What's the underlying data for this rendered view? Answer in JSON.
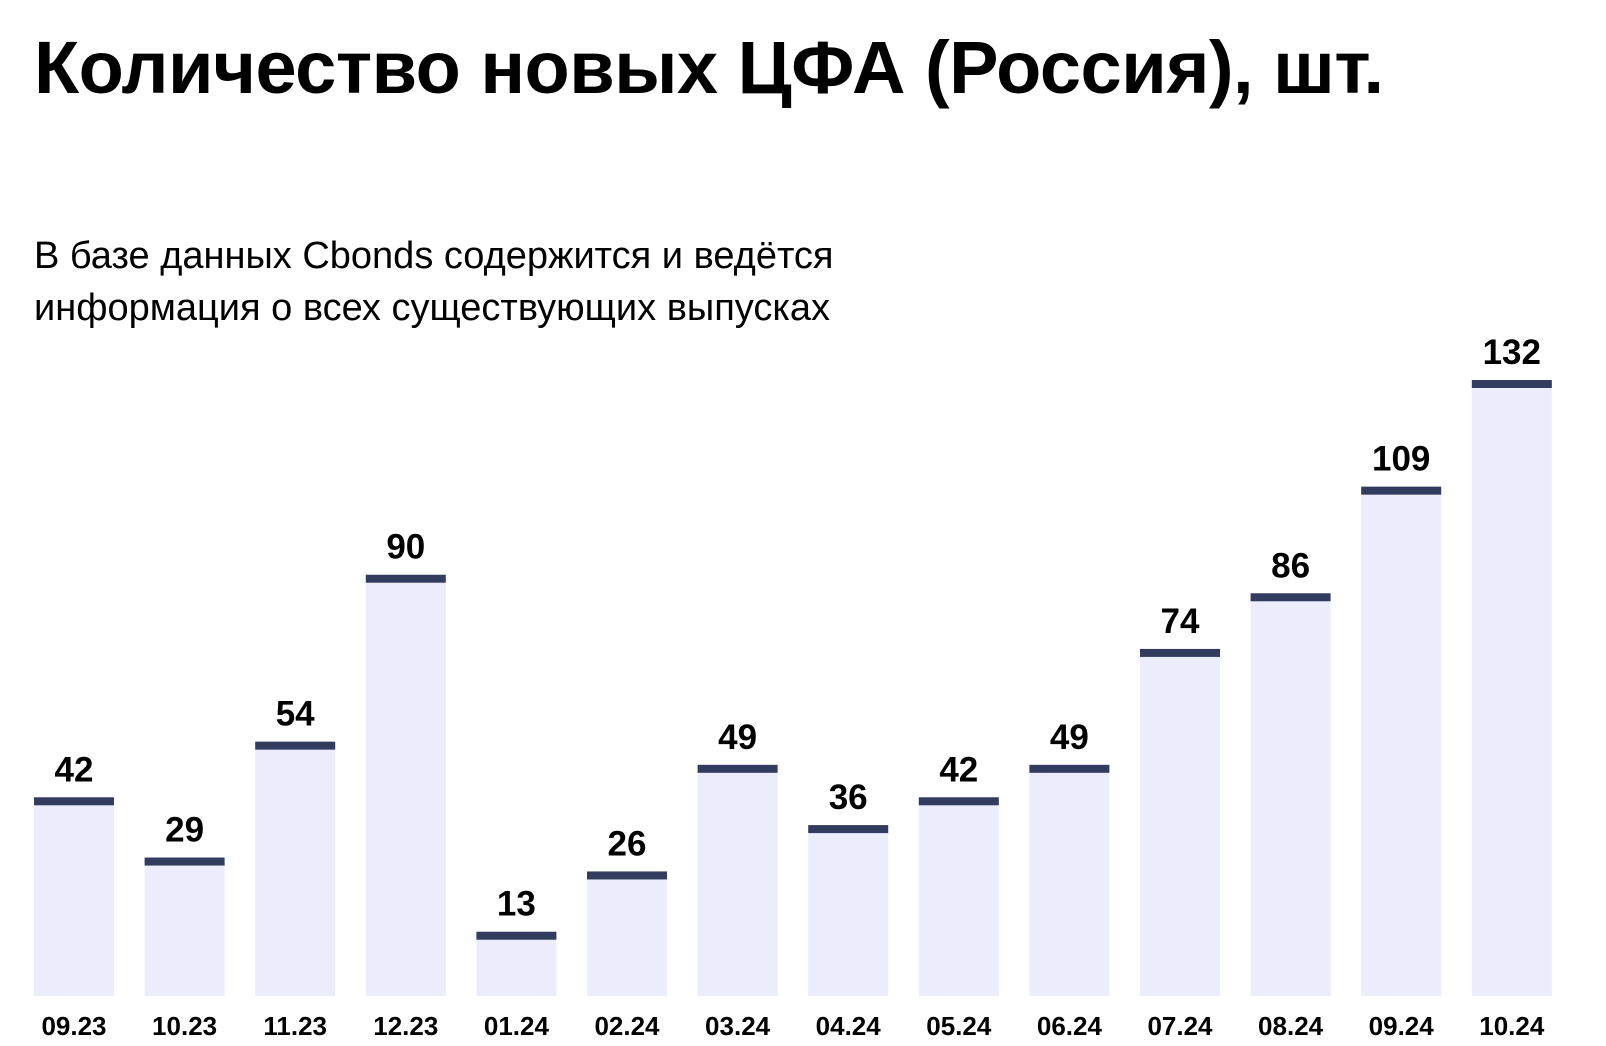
{
  "title": "Количество новых ЦФА (Россия), шт.",
  "subtitle": "В базе данных Cbonds содержится и ведётся информация о всех существующих выпусках",
  "colors": {
    "bar_fill": "#ebedfc",
    "bar_cap": "#323c5e",
    "text": "#000000"
  },
  "chart_data": {
    "type": "bar",
    "title": "Количество новых ЦФА (Россия), шт.",
    "subtitle": "В базе данных Cbonds содержится и ведётся информация о всех существующих выпусках",
    "categories": [
      "09.23",
      "10.23",
      "11.23",
      "12.23",
      "01.24",
      "02.24",
      "03.24",
      "04.24",
      "05.24",
      "06.24",
      "07.24",
      "08.24",
      "09.24",
      "10.24"
    ],
    "values": [
      42,
      29,
      54,
      90,
      13,
      26,
      49,
      36,
      42,
      49,
      74,
      86,
      109,
      132
    ],
    "data_labels": [
      "42",
      "29",
      "54",
      "90",
      "13",
      "26",
      "49",
      "36",
      "42",
      "49",
      "74",
      "86",
      "109",
      "132"
    ],
    "xlabel": "",
    "ylabel": "",
    "ylim": [
      0,
      132
    ],
    "grid": false,
    "legend": "none"
  }
}
